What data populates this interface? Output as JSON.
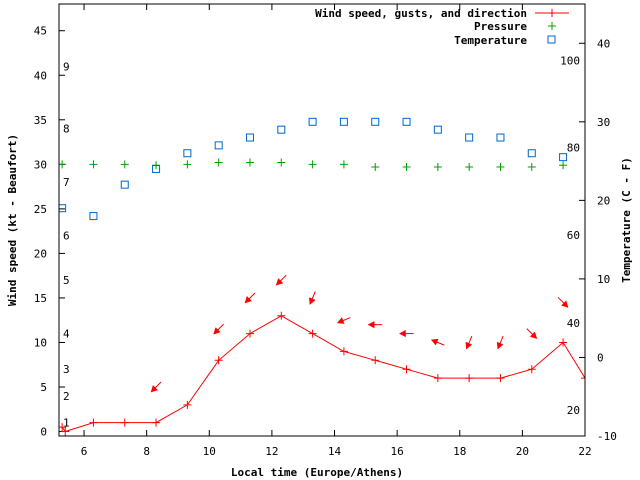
{
  "chart_data": {
    "type": "line",
    "xlabel": "Local time (Europe/Athens)",
    "ylabel_left": "Wind speed (kt - Beaufort)",
    "ylabel_right": "Temperature (C - F)",
    "x_ticks": [
      6,
      8,
      10,
      12,
      14,
      16,
      18,
      20,
      22
    ],
    "xlim": [
      5.2,
      22
    ],
    "y_left_ticks": [
      0,
      5,
      10,
      15,
      20,
      25,
      30,
      35,
      40,
      45
    ],
    "y_left_lim": [
      -0.5,
      48
    ],
    "y_right_ticks": [
      -10,
      0,
      10,
      20,
      30,
      40
    ],
    "y_right_lim": [
      -10,
      45
    ],
    "beaufort_labels": [
      {
        "label": "1",
        "kt": 1
      },
      {
        "label": "2",
        "kt": 4
      },
      {
        "label": "3",
        "kt": 7
      },
      {
        "label": "4",
        "kt": 11
      },
      {
        "label": "5",
        "kt": 17
      },
      {
        "label": "6",
        "kt": 22
      },
      {
        "label": "7",
        "kt": 28
      },
      {
        "label": "8",
        "kt": 34
      },
      {
        "label": "9",
        "kt": 41
      }
    ],
    "fahrenheit_labels": [
      {
        "label": "20",
        "c": -6.7
      },
      {
        "label": "40",
        "c": 4.4
      },
      {
        "label": "60",
        "c": 15.6
      },
      {
        "label": "80",
        "c": 26.7
      },
      {
        "label": "100",
        "c": 37.8
      }
    ],
    "legend": [
      "Wind speed, gusts, and direction",
      "Pressure",
      "Temperature"
    ],
    "legend_position": "top-right",
    "colors": {
      "wind": "#ff0000",
      "pressure": "#00a000",
      "temperature": "#0066cc",
      "axis": "#000000"
    },
    "series": [
      {
        "name": "Wind speed, gusts, and direction",
        "axis": "left",
        "x": [
          5.3,
          5.4,
          6.3,
          7.3,
          8.3,
          9.3,
          10.3,
          11.3,
          12.3,
          13.3,
          14.3,
          15.3,
          16.3,
          17.3,
          18.3,
          19.3,
          20.3,
          21.3,
          22
        ],
        "y": [
          0.5,
          0,
          1,
          1,
          1,
          3,
          8,
          11,
          13,
          11,
          9,
          8,
          7,
          6,
          6,
          6,
          7,
          10,
          6
        ]
      },
      {
        "name": "Pressure",
        "axis": "left",
        "x": [
          5.3,
          6.3,
          7.3,
          8.3,
          9.3,
          10.3,
          11.3,
          12.3,
          13.3,
          14.3,
          15.3,
          16.3,
          17.3,
          18.3,
          19.3,
          20.3,
          21.3
        ],
        "y": [
          30,
          30,
          30,
          29.9,
          30,
          30.2,
          30.2,
          30.2,
          30,
          30,
          29.7,
          29.7,
          29.7,
          29.7,
          29.7,
          29.7,
          29.9
        ]
      },
      {
        "name": "Temperature",
        "axis": "right",
        "x": [
          5.3,
          6.3,
          7.3,
          8.3,
          9.3,
          10.3,
          11.3,
          12.3,
          13.3,
          14.3,
          15.3,
          16.3,
          17.3,
          18.3,
          19.3,
          20.3,
          21.3
        ],
        "y": [
          19,
          18,
          22,
          24,
          26,
          27,
          28,
          29,
          30,
          30,
          30,
          30,
          29,
          28,
          28,
          26,
          25.5
        ]
      }
    ],
    "wind_arrows": [
      {
        "x": 8.3,
        "kt": 5,
        "dir": "NE"
      },
      {
        "x": 10.3,
        "kt": 11.5,
        "dir": "NE"
      },
      {
        "x": 11.3,
        "kt": 15,
        "dir": "NE"
      },
      {
        "x": 12.3,
        "kt": 17,
        "dir": "NE"
      },
      {
        "x": 13.3,
        "kt": 15,
        "dir": "NNE"
      },
      {
        "x": 14.3,
        "kt": 12.5,
        "dir": "ENE"
      },
      {
        "x": 15.3,
        "kt": 12,
        "dir": "E"
      },
      {
        "x": 16.3,
        "kt": 11,
        "dir": "E"
      },
      {
        "x": 17.3,
        "kt": 10,
        "dir": "ESE"
      },
      {
        "x": 18.3,
        "kt": 10,
        "dir": "NNE"
      },
      {
        "x": 19.3,
        "kt": 10,
        "dir": "NNE"
      },
      {
        "x": 20.3,
        "kt": 11,
        "dir": "NW"
      },
      {
        "x": 21.3,
        "kt": 14.5,
        "dir": "NW"
      }
    ]
  }
}
